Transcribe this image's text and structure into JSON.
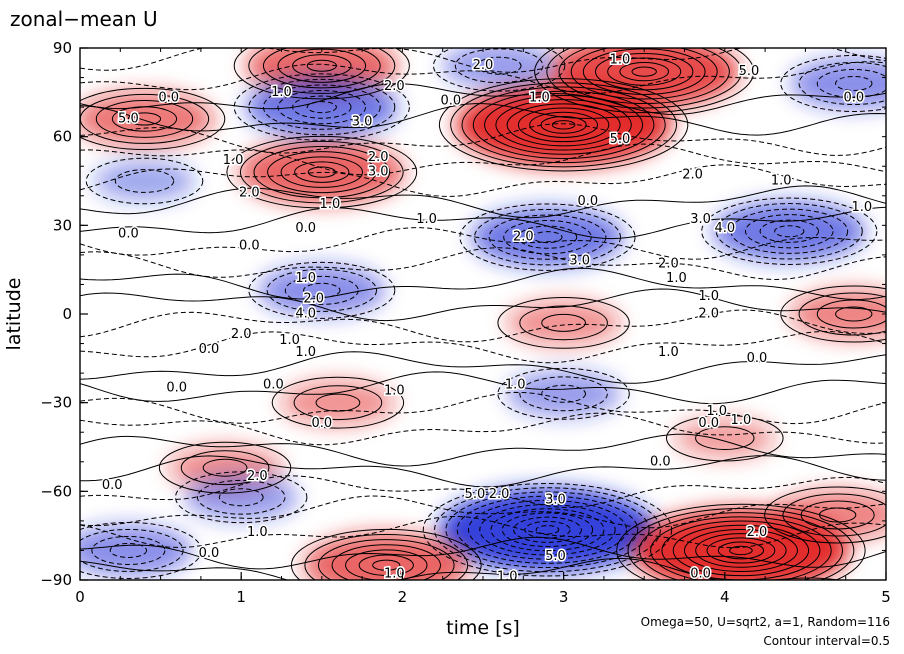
{
  "chart_data": {
    "type": "heatmap",
    "title": "zonal−mean U",
    "xlabel": "time [s]",
    "ylabel": "latitude",
    "xlim": [
      0,
      5
    ],
    "ylim": [
      -90,
      90
    ],
    "x_ticks": [
      "0",
      "1",
      "2",
      "3",
      "4",
      "5"
    ],
    "y_ticks": [
      "−90",
      "−60",
      "−30",
      "0",
      "30",
      "60",
      "90"
    ],
    "x_tick_values": [
      0,
      1,
      2,
      3,
      4,
      5
    ],
    "y_tick_values": [
      -90,
      -60,
      -30,
      0,
      30,
      60,
      90
    ],
    "grid": false,
    "colormap": {
      "negative": "#1e2bd6",
      "zero": "#ffffff",
      "positive": "#e01818"
    },
    "contour_interval": 0.5,
    "negative_contours": "dashed",
    "positive_contours": "solid",
    "features": [
      {
        "t": 3.0,
        "lat": 64,
        "value": 5.5,
        "sign": "positive"
      },
      {
        "t": 3.5,
        "lat": 82,
        "value": 4.5,
        "sign": "positive"
      },
      {
        "t": 1.5,
        "lat": 48,
        "value": 3.5,
        "sign": "positive"
      },
      {
        "t": 1.5,
        "lat": 84,
        "value": 3.0,
        "sign": "positive"
      },
      {
        "t": 0.4,
        "lat": 66,
        "value": 2.5,
        "sign": "positive"
      },
      {
        "t": 1.5,
        "lat": 70,
        "value": -3.0,
        "sign": "negative"
      },
      {
        "t": 2.9,
        "lat": 26,
        "value": -3.0,
        "sign": "negative"
      },
      {
        "t": 4.4,
        "lat": 28,
        "value": -3.0,
        "sign": "negative"
      },
      {
        "t": 4.8,
        "lat": 78,
        "value": -2.0,
        "sign": "negative"
      },
      {
        "t": 2.6,
        "lat": 84,
        "value": -1.5,
        "sign": "negative"
      },
      {
        "t": 1.5,
        "lat": 8,
        "value": -2.0,
        "sign": "negative"
      },
      {
        "t": 3.0,
        "lat": -3,
        "value": 1.5,
        "sign": "positive"
      },
      {
        "t": 4.8,
        "lat": 0,
        "value": 2.0,
        "sign": "positive"
      },
      {
        "t": 1.6,
        "lat": -30,
        "value": 1.5,
        "sign": "positive"
      },
      {
        "t": 3.0,
        "lat": -27,
        "value": -1.5,
        "sign": "negative"
      },
      {
        "t": 0.9,
        "lat": -52,
        "value": 1.5,
        "sign": "positive"
      },
      {
        "t": 1.0,
        "lat": -62,
        "value": -1.5,
        "sign": "negative"
      },
      {
        "t": 2.9,
        "lat": -73,
        "value": -5.5,
        "sign": "negative"
      },
      {
        "t": 4.1,
        "lat": -80,
        "value": 5.5,
        "sign": "positive"
      },
      {
        "t": 1.9,
        "lat": -85,
        "value": 3.5,
        "sign": "positive"
      },
      {
        "t": 4.7,
        "lat": -68,
        "value": 2.0,
        "sign": "positive"
      },
      {
        "t": 4.0,
        "lat": -42,
        "value": 1.0,
        "sign": "positive"
      },
      {
        "t": 0.3,
        "lat": -80,
        "value": -2.0,
        "sign": "negative"
      },
      {
        "t": 0.4,
        "lat": 45,
        "value": -1.0,
        "sign": "negative"
      }
    ],
    "contour_labels": [
      {
        "t": 0.3,
        "lat": 66,
        "text": "5.0"
      },
      {
        "t": 0.55,
        "lat": 73,
        "text": "0.0"
      },
      {
        "t": 1.25,
        "lat": 75,
        "text": "1.0"
      },
      {
        "t": 1.95,
        "lat": 77,
        "text": "2.0"
      },
      {
        "t": 1.75,
        "lat": 65,
        "text": "3.0"
      },
      {
        "t": 2.5,
        "lat": 84,
        "text": "2.0"
      },
      {
        "t": 2.3,
        "lat": 72,
        "text": "0.0"
      },
      {
        "t": 2.85,
        "lat": 73,
        "text": "1.0"
      },
      {
        "t": 3.35,
        "lat": 59,
        "text": "5.0"
      },
      {
        "t": 3.35,
        "lat": 86,
        "text": "1.0"
      },
      {
        "t": 4.15,
        "lat": 82,
        "text": "5.0"
      },
      {
        "t": 4.8,
        "lat": 73,
        "text": "0.0"
      },
      {
        "t": 0.95,
        "lat": 52,
        "text": "1.0"
      },
      {
        "t": 1.85,
        "lat": 53,
        "text": "2.0"
      },
      {
        "t": 1.85,
        "lat": 48,
        "text": "3.0"
      },
      {
        "t": 1.05,
        "lat": 41,
        "text": "2.0"
      },
      {
        "t": 1.55,
        "lat": 37,
        "text": "1.0"
      },
      {
        "t": 2.15,
        "lat": 32,
        "text": "1.0"
      },
      {
        "t": 3.8,
        "lat": 47,
        "text": "2.0"
      },
      {
        "t": 4.35,
        "lat": 45,
        "text": "1.0"
      },
      {
        "t": 4.85,
        "lat": 36,
        "text": "1.0"
      },
      {
        "t": 3.15,
        "lat": 38,
        "text": "0.0"
      },
      {
        "t": 0.3,
        "lat": 27,
        "text": "0.0"
      },
      {
        "t": 1.05,
        "lat": 23,
        "text": "0.0"
      },
      {
        "t": 1.4,
        "lat": 29,
        "text": "0.0"
      },
      {
        "t": 2.75,
        "lat": 26,
        "text": "2.0"
      },
      {
        "t": 3.1,
        "lat": 18,
        "text": "3.0"
      },
      {
        "t": 3.85,
        "lat": 32,
        "text": "3.0"
      },
      {
        "t": 4.0,
        "lat": 29,
        "text": "4.0"
      },
      {
        "t": 3.65,
        "lat": 17,
        "text": "2.0"
      },
      {
        "t": 3.7,
        "lat": 12,
        "text": "1.0"
      },
      {
        "t": 1.4,
        "lat": 12,
        "text": "1.0"
      },
      {
        "t": 1.45,
        "lat": 5,
        "text": "2.0"
      },
      {
        "t": 1.4,
        "lat": 0,
        "text": "4.0"
      },
      {
        "t": 1.0,
        "lat": -7,
        "text": "2.0"
      },
      {
        "t": 1.3,
        "lat": -9,
        "text": "1.0"
      },
      {
        "t": 0.8,
        "lat": -12,
        "text": "0.0"
      },
      {
        "t": 1.4,
        "lat": -13,
        "text": "1.0"
      },
      {
        "t": 3.9,
        "lat": 6,
        "text": "1.0"
      },
      {
        "t": 3.9,
        "lat": 0,
        "text": "2.0"
      },
      {
        "t": 3.65,
        "lat": -13,
        "text": "1.0"
      },
      {
        "t": 4.2,
        "lat": -15,
        "text": "0.0"
      },
      {
        "t": 0.6,
        "lat": -25,
        "text": "0.0"
      },
      {
        "t": 1.2,
        "lat": -24,
        "text": "0.0"
      },
      {
        "t": 1.95,
        "lat": -26,
        "text": "1.0"
      },
      {
        "t": 2.7,
        "lat": -24,
        "text": "1.0"
      },
      {
        "t": 1.5,
        "lat": -37,
        "text": "0.0"
      },
      {
        "t": 3.9,
        "lat": -37,
        "text": "0.0"
      },
      {
        "t": 3.95,
        "lat": -33,
        "text": "1.0"
      },
      {
        "t": 4.1,
        "lat": -36,
        "text": "1.0"
      },
      {
        "t": 3.6,
        "lat": -50,
        "text": "0.0"
      },
      {
        "t": 0.2,
        "lat": -58,
        "text": "0.0"
      },
      {
        "t": 1.1,
        "lat": -55,
        "text": "2.0"
      },
      {
        "t": 2.45,
        "lat": -61,
        "text": "5.0"
      },
      {
        "t": 2.6,
        "lat": -61,
        "text": "2.0"
      },
      {
        "t": 2.95,
        "lat": -63,
        "text": "3.0"
      },
      {
        "t": 1.1,
        "lat": -74,
        "text": "1.0"
      },
      {
        "t": 0.8,
        "lat": -81,
        "text": "0.0"
      },
      {
        "t": 2.95,
        "lat": -82,
        "text": "5.0"
      },
      {
        "t": 2.65,
        "lat": -89,
        "text": "1.0"
      },
      {
        "t": 1.95,
        "lat": -88,
        "text": "1.0"
      },
      {
        "t": 4.2,
        "lat": -74,
        "text": "2.0"
      },
      {
        "t": 3.85,
        "lat": -88,
        "text": "0.0"
      }
    ]
  },
  "footnote": {
    "params": "Omega=50, U=sqrt2, a=1, Random=116",
    "interval": "Contour interval=0.5"
  }
}
